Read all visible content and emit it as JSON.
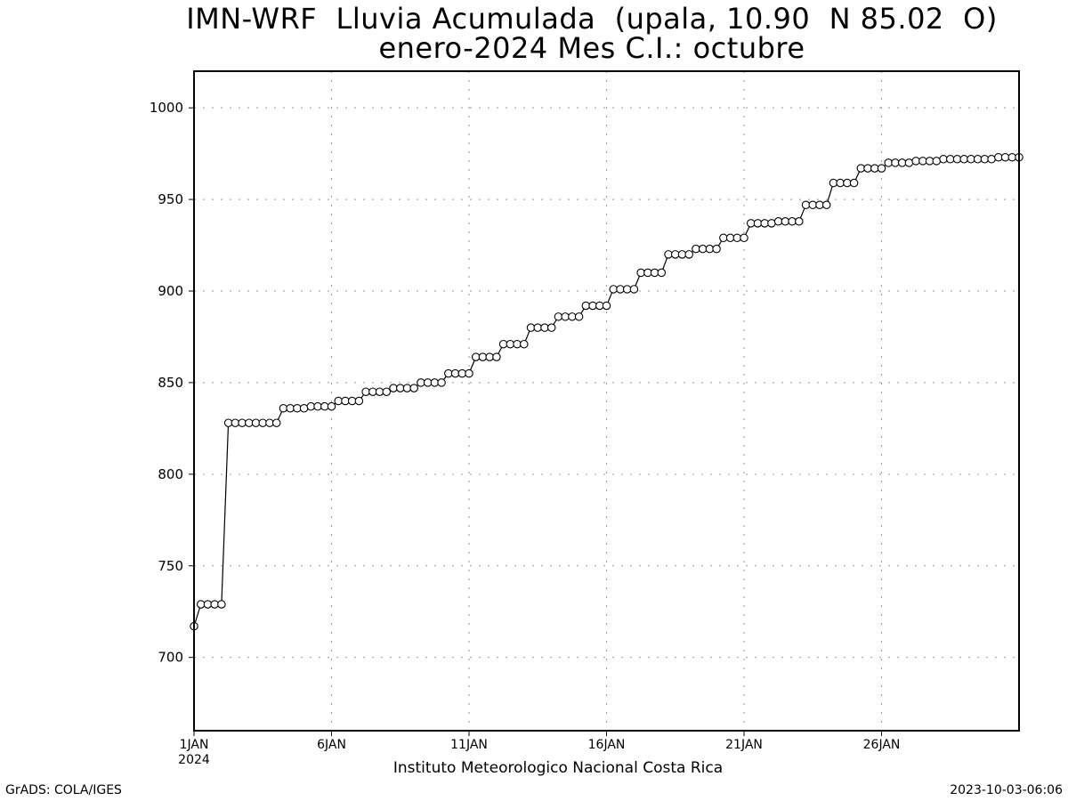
{
  "chart_data": {
    "type": "line",
    "title": "IMN-WRF  Lluvia Acumulada  (upala, 10.90  N 85.02  O)",
    "subtitle": "enero-2024 Mes C.I.: octubre",
    "xlabel": "Instituto Meteorologico Nacional Costa Rica",
    "ylabel": "",
    "xlim": [
      0,
      30
    ],
    "ylim": [
      660,
      1020
    ],
    "yticks": [
      700,
      750,
      800,
      850,
      900,
      950,
      1000
    ],
    "xticks": [
      {
        "x": 0,
        "label": "1JAN",
        "sublabel": "2024"
      },
      {
        "x": 5,
        "label": "6JAN"
      },
      {
        "x": 10,
        "label": "11JAN"
      },
      {
        "x": 15,
        "label": "16JAN"
      },
      {
        "x": 20,
        "label": "21JAN"
      },
      {
        "x": 25,
        "label": "26JAN"
      }
    ],
    "grid": true,
    "marker": "open-circle",
    "x_step_days": 0.25,
    "series": [
      {
        "values": [
          717,
          729,
          729,
          729,
          729,
          828,
          828,
          828,
          828,
          828,
          828,
          828,
          828,
          836,
          836,
          836,
          836,
          837,
          837,
          837,
          837,
          840,
          840,
          840,
          840,
          845,
          845,
          845,
          845,
          847,
          847,
          847,
          847,
          850,
          850,
          850,
          850,
          855,
          855,
          855,
          855,
          864,
          864,
          864,
          864,
          871,
          871,
          871,
          871,
          880,
          880,
          880,
          880,
          886,
          886,
          886,
          886,
          892,
          892,
          892,
          892,
          901,
          901,
          901,
          901,
          910,
          910,
          910,
          910,
          920,
          920,
          920,
          920,
          923,
          923,
          923,
          923,
          929,
          929,
          929,
          929,
          937,
          937,
          937,
          937,
          938,
          938,
          938,
          938,
          947,
          947,
          947,
          947,
          959,
          959,
          959,
          959,
          967,
          967,
          967,
          967,
          970,
          970,
          970,
          970,
          971,
          971,
          971,
          971,
          972,
          972,
          972,
          972,
          972,
          972,
          972,
          972,
          973,
          973,
          973,
          973
        ]
      }
    ]
  },
  "footer": {
    "left": "GrADS: COLA/IGES",
    "right": "2023-10-03-06:06"
  }
}
